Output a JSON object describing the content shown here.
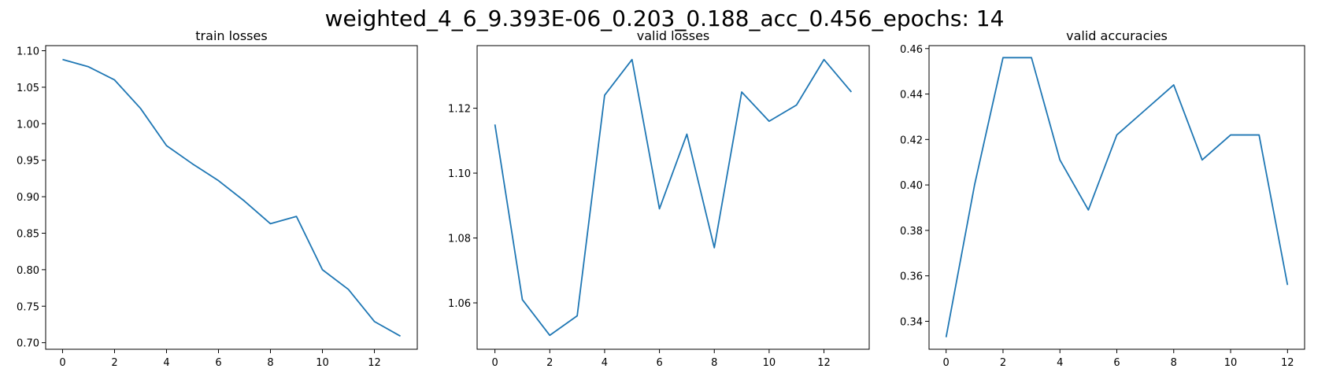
{
  "figure": {
    "suptitle": "weighted_4_6_9.393E-06_0.203_0.188_acc_0.456_epochs: 14"
  },
  "chart_data": [
    {
      "type": "line",
      "title": "train losses",
      "xlabel": "",
      "ylabel": "",
      "x": [
        0,
        1,
        2,
        3,
        4,
        5,
        6,
        7,
        8,
        9,
        10,
        11,
        12,
        13
      ],
      "series": [
        {
          "values": [
            1.088,
            1.078,
            1.06,
            1.021,
            0.97,
            0.945,
            0.922,
            0.894,
            0.863,
            0.873,
            0.8,
            0.773,
            0.729,
            0.709
          ],
          "color": "#1f77b4"
        }
      ],
      "xlim": [
        -0.65,
        13.65
      ],
      "ylim": [
        0.691,
        1.107
      ],
      "xticks": [
        0,
        2,
        4,
        6,
        8,
        10,
        12
      ],
      "yticks": [
        0.7,
        0.75,
        0.8,
        0.85,
        0.9,
        0.95,
        1.0,
        1.05,
        1.1
      ],
      "ytick_labels": [
        "0.70",
        "0.75",
        "0.80",
        "0.85",
        "0.90",
        "0.95",
        "1.00",
        "1.05",
        "1.10"
      ],
      "grid": false
    },
    {
      "type": "line",
      "title": "valid losses",
      "xlabel": "",
      "ylabel": "",
      "x": [
        0,
        1,
        2,
        3,
        4,
        5,
        6,
        7,
        8,
        9,
        10,
        11,
        12,
        13
      ],
      "series": [
        {
          "values": [
            1.115,
            1.061,
            1.05,
            1.056,
            1.124,
            1.135,
            1.089,
            1.112,
            1.077,
            1.125,
            1.116,
            1.121,
            1.135,
            1.125
          ],
          "color": "#1f77b4"
        }
      ],
      "xlim": [
        -0.65,
        13.65
      ],
      "ylim": [
        1.0457,
        1.1393
      ],
      "xticks": [
        0,
        2,
        4,
        6,
        8,
        10,
        12
      ],
      "yticks": [
        1.06,
        1.08,
        1.1,
        1.12
      ],
      "ytick_labels": [
        "1.06",
        "1.08",
        "1.10",
        "1.12"
      ],
      "grid": false
    },
    {
      "type": "line",
      "title": "valid accuracies",
      "xlabel": "",
      "ylabel": "",
      "x": [
        0,
        1,
        2,
        3,
        4,
        5,
        6,
        7,
        8,
        9,
        10,
        11,
        12
      ],
      "series": [
        {
          "values": [
            0.333,
            0.4,
            0.456,
            0.456,
            0.411,
            0.389,
            0.422,
            0.433,
            0.444,
            0.411,
            0.422,
            0.422,
            0.356
          ],
          "color": "#1f77b4"
        }
      ],
      "xlim": [
        -0.6,
        12.6
      ],
      "ylim": [
        0.3277,
        0.4613
      ],
      "xticks": [
        0,
        2,
        4,
        6,
        8,
        10,
        12
      ],
      "yticks": [
        0.34,
        0.36,
        0.38,
        0.4,
        0.42,
        0.44,
        0.46
      ],
      "ytick_labels": [
        "0.34",
        "0.36",
        "0.38",
        "0.40",
        "0.42",
        "0.44",
        "0.46"
      ],
      "grid": false
    }
  ]
}
